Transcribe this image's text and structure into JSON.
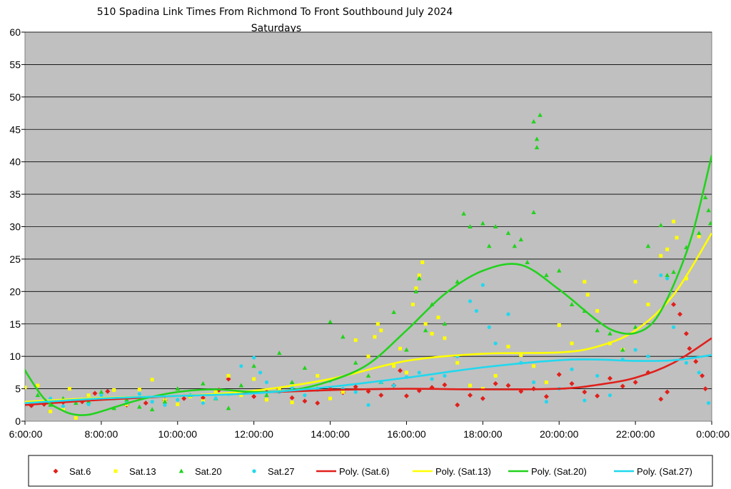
{
  "chart_data": {
    "type": "scatter",
    "title": "510 Spadina Link Times From Richmond To Front Southbound July 2024",
    "subtitle": "Saturdays",
    "xlabel": "",
    "ylabel": "",
    "xlim": [
      "6:00:00",
      "0:00:00"
    ],
    "ylim": [
      0,
      60
    ],
    "x_ticks": [
      "6:00:00",
      "8:00:00",
      "10:00:00",
      "12:00:00",
      "14:00:00",
      "16:00:00",
      "18:00:00",
      "20:00:00",
      "22:00:00",
      "0:00:00"
    ],
    "y_ticks": [
      "0",
      "5",
      "10",
      "15",
      "20",
      "25",
      "30",
      "35",
      "40",
      "45",
      "50",
      "55",
      "60"
    ],
    "grid": "horizontal",
    "plot_background": "#c0c0c0",
    "legend_position": "bottom",
    "series": [
      {
        "name": "Sat.6",
        "marker": "diamond",
        "color": "#e0201b",
        "points": [
          [
            "6:10",
            2.4
          ],
          [
            "6:30",
            2.6
          ],
          [
            "7:00",
            2.9
          ],
          [
            "7:30",
            3.0
          ],
          [
            "7:50",
            4.3
          ],
          [
            "8:10",
            4.6
          ],
          [
            "8:40",
            2.5
          ],
          [
            "9:10",
            2.8
          ],
          [
            "9:40",
            3.2
          ],
          [
            "10:10",
            3.5
          ],
          [
            "10:40",
            3.6
          ],
          [
            "11:05",
            4.8
          ],
          [
            "11:20",
            6.5
          ],
          [
            "11:40",
            4.2
          ],
          [
            "12:00",
            3.8
          ],
          [
            "12:20",
            4.5
          ],
          [
            "12:40",
            4.9
          ],
          [
            "13:00",
            3.6
          ],
          [
            "13:20",
            3.1
          ],
          [
            "13:40",
            2.8
          ],
          [
            "14:00",
            5.0
          ],
          [
            "14:20",
            4.4
          ],
          [
            "14:40",
            5.3
          ],
          [
            "15:00",
            4.6
          ],
          [
            "15:20",
            4.0
          ],
          [
            "15:40",
            5.5
          ],
          [
            "15:50",
            7.8
          ],
          [
            "16:00",
            3.9
          ],
          [
            "16:20",
            4.7
          ],
          [
            "16:40",
            5.2
          ],
          [
            "17:00",
            5.6
          ],
          [
            "17:20",
            2.5
          ],
          [
            "17:40",
            4.0
          ],
          [
            "18:00",
            3.5
          ],
          [
            "18:20",
            5.8
          ],
          [
            "18:40",
            5.5
          ],
          [
            "19:00",
            4.6
          ],
          [
            "19:20",
            5.0
          ],
          [
            "19:40",
            3.8
          ],
          [
            "20:00",
            7.2
          ],
          [
            "20:20",
            5.8
          ],
          [
            "20:40",
            4.5
          ],
          [
            "21:00",
            3.9
          ],
          [
            "21:20",
            6.6
          ],
          [
            "21:40",
            5.4
          ],
          [
            "22:00",
            6.0
          ],
          [
            "22:20",
            7.5
          ],
          [
            "22:40",
            3.4
          ],
          [
            "22:50",
            4.5
          ],
          [
            "23:00",
            18.0
          ],
          [
            "23:10",
            16.5
          ],
          [
            "23:20",
            13.5
          ],
          [
            "23:25",
            11.2
          ],
          [
            "23:35",
            9.2
          ],
          [
            "23:45",
            7.0
          ],
          [
            "23:50",
            5.0
          ]
        ]
      },
      {
        "name": "Sat.13",
        "marker": "square",
        "color": "#ffff00",
        "points": [
          [
            "6:00",
            5.2
          ],
          [
            "6:20",
            5.5
          ],
          [
            "6:40",
            1.5
          ],
          [
            "7:00",
            1.8
          ],
          [
            "7:10",
            5.0
          ],
          [
            "7:20",
            0.5
          ],
          [
            "7:40",
            4.0
          ],
          [
            "8:00",
            3.5
          ],
          [
            "8:20",
            4.8
          ],
          [
            "8:40",
            2.6
          ],
          [
            "9:00",
            4.9
          ],
          [
            "9:20",
            6.4
          ],
          [
            "9:40",
            3.2
          ],
          [
            "10:00",
            2.6
          ],
          [
            "10:20",
            3.8
          ],
          [
            "10:40",
            3.1
          ],
          [
            "11:00",
            4.5
          ],
          [
            "11:20",
            7.0
          ],
          [
            "11:40",
            4.0
          ],
          [
            "12:00",
            6.5
          ],
          [
            "12:20",
            3.3
          ],
          [
            "12:40",
            4.8
          ],
          [
            "13:00",
            2.9
          ],
          [
            "13:20",
            5.0
          ],
          [
            "13:40",
            7.0
          ],
          [
            "14:00",
            3.5
          ],
          [
            "14:20",
            4.5
          ],
          [
            "14:40",
            12.5
          ],
          [
            "15:00",
            10.0
          ],
          [
            "15:10",
            13.0
          ],
          [
            "15:15",
            15.0
          ],
          [
            "15:20",
            14.0
          ],
          [
            "15:40",
            8.5
          ],
          [
            "15:50",
            11.2
          ],
          [
            "16:00",
            7.5
          ],
          [
            "16:10",
            18.0
          ],
          [
            "16:15",
            20.5
          ],
          [
            "16:20",
            22.5
          ],
          [
            "16:25",
            24.5
          ],
          [
            "16:30",
            15.0
          ],
          [
            "16:40",
            13.5
          ],
          [
            "16:50",
            16.0
          ],
          [
            "17:00",
            12.8
          ],
          [
            "17:20",
            9.0
          ],
          [
            "17:40",
            5.5
          ],
          [
            "18:00",
            5.0
          ],
          [
            "18:20",
            7.0
          ],
          [
            "18:40",
            11.5
          ],
          [
            "19:00",
            10.2
          ],
          [
            "19:20",
            8.5
          ],
          [
            "19:40",
            6.0
          ],
          [
            "20:00",
            14.8
          ],
          [
            "20:20",
            12.0
          ],
          [
            "20:40",
            21.5
          ],
          [
            "20:45",
            19.5
          ],
          [
            "21:00",
            17.0
          ],
          [
            "21:20",
            12.0
          ],
          [
            "21:40",
            11.0
          ],
          [
            "22:00",
            21.5
          ],
          [
            "22:20",
            18.0
          ],
          [
            "22:40",
            25.5
          ],
          [
            "22:50",
            26.5
          ],
          [
            "23:00",
            30.8
          ],
          [
            "23:05",
            28.3
          ],
          [
            "23:20",
            22.0
          ],
          [
            "23:40",
            28.5
          ]
        ]
      },
      {
        "name": "Sat.20",
        "marker": "triangle",
        "color": "#22d21d",
        "points": [
          [
            "6:00",
            7.8
          ],
          [
            "6:20",
            4.0
          ],
          [
            "6:40",
            2.5
          ],
          [
            "7:00",
            3.5
          ],
          [
            "7:20",
            2.8
          ],
          [
            "7:40",
            3.0
          ],
          [
            "8:00",
            4.5
          ],
          [
            "8:20",
            2.0
          ],
          [
            "8:40",
            3.3
          ],
          [
            "9:00",
            2.2
          ],
          [
            "9:20",
            1.8
          ],
          [
            "9:40",
            3.0
          ],
          [
            "10:00",
            5.0
          ],
          [
            "10:20",
            4.0
          ],
          [
            "10:40",
            5.8
          ],
          [
            "11:00",
            3.5
          ],
          [
            "11:20",
            2.0
          ],
          [
            "11:40",
            5.5
          ],
          [
            "12:00",
            8.5
          ],
          [
            "12:20",
            4.0
          ],
          [
            "12:40",
            10.5
          ],
          [
            "13:00",
            6.0
          ],
          [
            "13:20",
            8.2
          ],
          [
            "13:40",
            5.0
          ],
          [
            "14:00",
            15.3
          ],
          [
            "14:20",
            13.0
          ],
          [
            "14:40",
            9.0
          ],
          [
            "15:00",
            7.0
          ],
          [
            "15:20",
            6.0
          ],
          [
            "15:40",
            16.8
          ],
          [
            "16:00",
            11.0
          ],
          [
            "16:15",
            20.0
          ],
          [
            "16:20",
            22.0
          ],
          [
            "16:30",
            14.0
          ],
          [
            "16:40",
            18.0
          ],
          [
            "17:00",
            15.0
          ],
          [
            "17:20",
            21.5
          ],
          [
            "17:30",
            32.0
          ],
          [
            "17:40",
            30.0
          ],
          [
            "18:00",
            30.5
          ],
          [
            "18:10",
            27.0
          ],
          [
            "18:20",
            30.0
          ],
          [
            "18:40",
            29.0
          ],
          [
            "18:50",
            27.0
          ],
          [
            "19:00",
            28.0
          ],
          [
            "19:10",
            24.5
          ],
          [
            "19:20",
            46.2
          ],
          [
            "19:25",
            43.5
          ],
          [
            "19:25",
            42.2
          ],
          [
            "19:30",
            47.2
          ],
          [
            "19:20",
            32.2
          ],
          [
            "19:40",
            22.5
          ],
          [
            "20:00",
            23.2
          ],
          [
            "20:20",
            18.0
          ],
          [
            "20:40",
            17.0
          ],
          [
            "21:00",
            14.0
          ],
          [
            "21:20",
            13.5
          ],
          [
            "21:40",
            11.0
          ],
          [
            "22:00",
            14.5
          ],
          [
            "22:20",
            27.0
          ],
          [
            "22:40",
            30.2
          ],
          [
            "22:50",
            22.5
          ],
          [
            "23:00",
            23.0
          ],
          [
            "23:20",
            26.8
          ],
          [
            "23:40",
            29.0
          ],
          [
            "23:50",
            34.5
          ],
          [
            "23:55",
            32.5
          ],
          [
            "23:58",
            30.5
          ]
        ]
      },
      {
        "name": "Sat.27",
        "marker": "circle",
        "color": "#20d8ee",
        "points": [
          [
            "6:20",
            2.8
          ],
          [
            "6:40",
            3.5
          ],
          [
            "7:00",
            2.3
          ],
          [
            "7:20",
            3.2
          ],
          [
            "7:40",
            2.6
          ],
          [
            "8:00",
            4.0
          ],
          [
            "8:20",
            3.5
          ],
          [
            "8:40",
            2.8
          ],
          [
            "9:00",
            4.2
          ],
          [
            "9:20",
            3.0
          ],
          [
            "9:40",
            2.5
          ],
          [
            "10:00",
            3.3
          ],
          [
            "10:20",
            4.0
          ],
          [
            "10:40",
            2.8
          ],
          [
            "11:00",
            3.5
          ],
          [
            "11:20",
            4.2
          ],
          [
            "11:40",
            8.5
          ],
          [
            "12:00",
            9.8
          ],
          [
            "12:10",
            7.5
          ],
          [
            "12:20",
            6.0
          ],
          [
            "12:40",
            4.5
          ],
          [
            "13:00",
            5.2
          ],
          [
            "13:20",
            4.0
          ],
          [
            "13:40",
            4.8
          ],
          [
            "14:00",
            6.2
          ],
          [
            "14:20",
            5.0
          ],
          [
            "14:40",
            4.5
          ],
          [
            "15:00",
            2.5
          ],
          [
            "15:20",
            6.0
          ],
          [
            "15:40",
            5.5
          ],
          [
            "16:00",
            6.8
          ],
          [
            "16:20",
            7.5
          ],
          [
            "16:40",
            6.5
          ],
          [
            "17:00",
            7.0
          ],
          [
            "17:20",
            10.0
          ],
          [
            "17:40",
            18.5
          ],
          [
            "17:50",
            17.0
          ],
          [
            "18:00",
            21.0
          ],
          [
            "18:10",
            14.5
          ],
          [
            "18:20",
            12.0
          ],
          [
            "18:40",
            16.5
          ],
          [
            "19:00",
            9.0
          ],
          [
            "19:20",
            6.0
          ],
          [
            "19:40",
            3.0
          ],
          [
            "20:00",
            5.0
          ],
          [
            "20:20",
            8.0
          ],
          [
            "20:40",
            3.2
          ],
          [
            "21:00",
            7.0
          ],
          [
            "21:20",
            4.0
          ],
          [
            "21:40",
            9.5
          ],
          [
            "22:00",
            11.0
          ],
          [
            "22:20",
            10.0
          ],
          [
            "22:40",
            22.5
          ],
          [
            "22:50",
            22.0
          ],
          [
            "23:00",
            14.5
          ],
          [
            "23:20",
            9.0
          ],
          [
            "23:40",
            7.5
          ],
          [
            "23:55",
            2.8
          ]
        ]
      }
    ],
    "trendlines": [
      {
        "name": "Poly. (Sat.6)",
        "color": "#e0201b",
        "x": [
          "6:00",
          "8:00",
          "10:00",
          "12:00",
          "14:00",
          "16:00",
          "18:00",
          "20:00",
          "21:00",
          "22:00",
          "23:00",
          "0:00"
        ],
        "y": [
          2.5,
          3.3,
          3.9,
          4.4,
          4.8,
          5.0,
          4.9,
          5.0,
          5.6,
          6.7,
          9.0,
          12.8
        ]
      },
      {
        "name": "Poly. (Sat.13)",
        "color": "#ffff00",
        "x": [
          "6:00",
          "8:00",
          "10:00",
          "12:00",
          "14:00",
          "16:00",
          "18:00",
          "20:00",
          "21:00",
          "22:00",
          "23:00",
          "0:00"
        ],
        "y": [
          3.0,
          3.6,
          3.9,
          4.7,
          6.5,
          9.3,
          10.4,
          10.6,
          11.5,
          14.0,
          19.5,
          29.0
        ]
      },
      {
        "name": "Poly. (Sat.20)",
        "color": "#22d21d",
        "x": [
          "6:00",
          "6:30",
          "7:00",
          "7:20",
          "7:40",
          "8:00",
          "9:00",
          "10:00",
          "11:00",
          "12:00",
          "13:00",
          "14:00",
          "15:00",
          "16:00",
          "17:00",
          "18:00",
          "19:00",
          "20:00",
          "21:00",
          "21:30",
          "22:00",
          "22:30",
          "23:00",
          "23:30",
          "0:00"
        ],
        "y": [
          7.8,
          3.5,
          1.6,
          1.0,
          1.0,
          1.5,
          3.3,
          4.5,
          4.9,
          4.5,
          4.8,
          6.2,
          8.8,
          14.0,
          19.6,
          23.2,
          24.1,
          20.3,
          15.5,
          13.8,
          13.6,
          15.5,
          21.0,
          29.0,
          41.0
        ]
      },
      {
        "name": "Poly. (Sat.27)",
        "color": "#20d8ee",
        "x": [
          "6:00",
          "8:00",
          "10:00",
          "12:00",
          "14:00",
          "16:00",
          "18:00",
          "20:00",
          "21:00",
          "22:00",
          "23:00",
          "0:00"
        ],
        "y": [
          2.8,
          3.5,
          3.9,
          4.3,
          5.3,
          6.7,
          8.3,
          9.4,
          9.5,
          9.3,
          9.4,
          10.2
        ]
      }
    ]
  }
}
